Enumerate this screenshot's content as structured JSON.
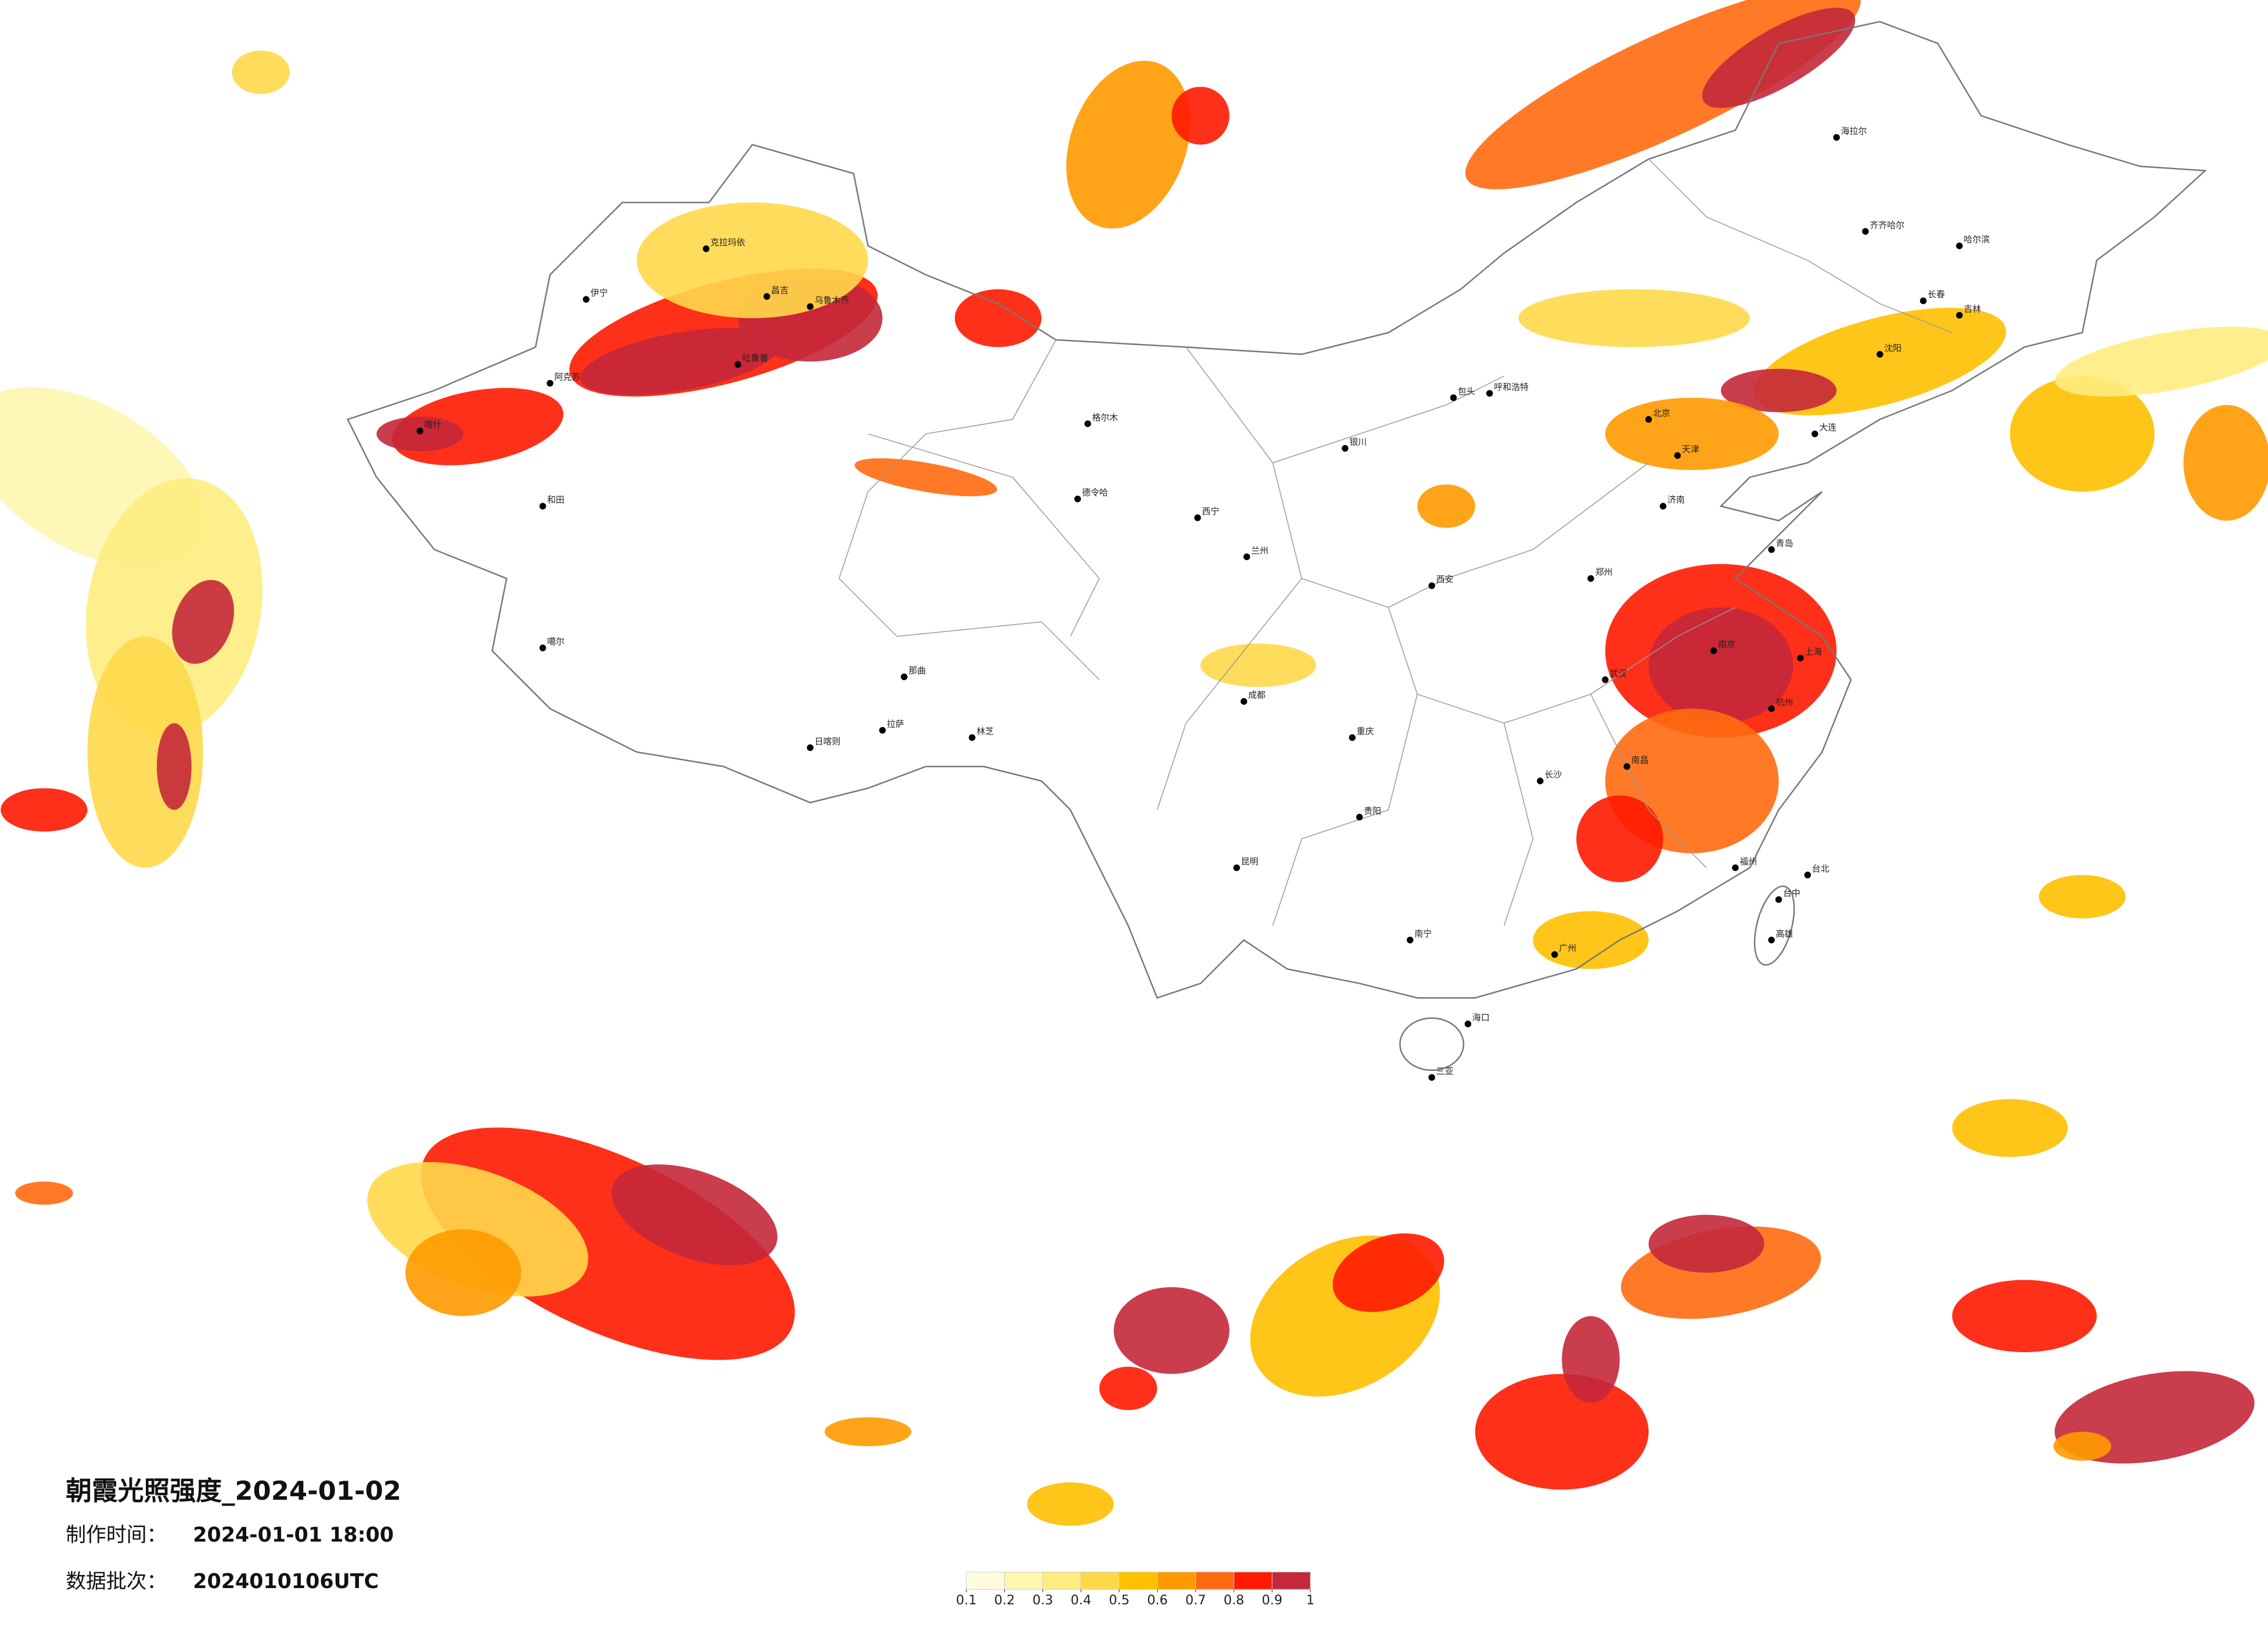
{
  "header": {
    "title": "朝霞光照强度_2024-01-02",
    "made_time_label": "制作时间：",
    "made_time": "2024-01-01 18:00",
    "batch_label": "数据批次：",
    "batch": "2024010106UTC"
  },
  "legend": {
    "colors": [
      "#fffce0",
      "#fff6b0",
      "#ffec80",
      "#ffd84a",
      "#ffc000",
      "#ff9a00",
      "#ff6a10",
      "#ff1a00",
      "#c4283a"
    ],
    "ticks": [
      0.1,
      0.2,
      0.3,
      0.4,
      0.5,
      0.6,
      0.7,
      0.8,
      0.9,
      1
    ]
  },
  "cities": [
    "伊宁",
    "克拉玛依",
    "昌吉",
    "乌鲁木齐",
    "吐鲁番",
    "阿克苏",
    "和田",
    "喀什",
    "噶尔",
    "日喀则",
    "拉萨",
    "那曲",
    "林芝",
    "格尔木",
    "德令哈",
    "西宁",
    "兰州",
    "银川",
    "呼和浩特",
    "包头",
    "海拉尔",
    "齐齐哈尔",
    "哈尔滨",
    "长春",
    "吉林",
    "沈阳",
    "大连",
    "北京",
    "天津",
    "济南",
    "青岛",
    "郑州",
    "西安",
    "成都",
    "重庆",
    "武汉",
    "南京",
    "上海",
    "杭州",
    "长沙",
    "南昌",
    "福州",
    "台北",
    "台中",
    "高雄",
    "贵阳",
    "昆明",
    "南宁",
    "广州",
    "海口",
    "三亚"
  ]
}
